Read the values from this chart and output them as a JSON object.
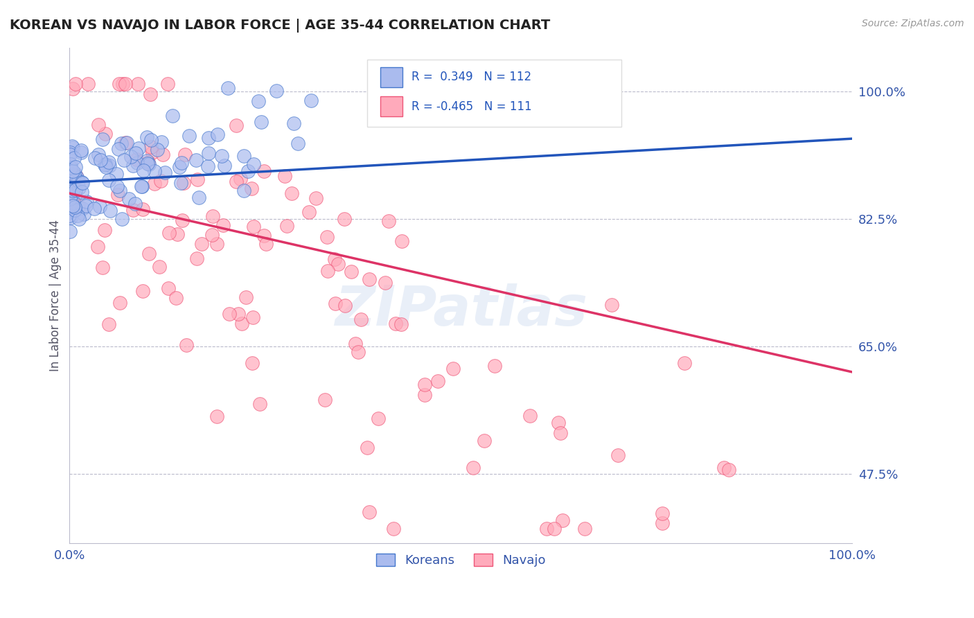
{
  "title": "KOREAN VS NAVAJO IN LABOR FORCE | AGE 35-44 CORRELATION CHART",
  "source": "Source: ZipAtlas.com",
  "ylabel": "In Labor Force | Age 35-44",
  "xlim": [
    0.0,
    1.0
  ],
  "ylim": [
    0.38,
    1.06
  ],
  "yticks": [
    0.475,
    0.65,
    0.825,
    1.0
  ],
  "ytick_labels": [
    "47.5%",
    "65.0%",
    "82.5%",
    "100.0%"
  ],
  "xticks": [
    0.0,
    1.0
  ],
  "xtick_labels": [
    "0.0%",
    "100.0%"
  ],
  "blue_R": 0.349,
  "blue_N": 112,
  "pink_R": -0.465,
  "pink_N": 111,
  "blue_fill": "#AABBEE",
  "pink_fill": "#FFAABB",
  "blue_edge": "#4477CC",
  "pink_edge": "#EE5577",
  "blue_line": "#2255BB",
  "pink_line": "#DD3366",
  "watermark": "ZIPatlas",
  "legend_label_blue": "Koreans",
  "legend_label_pink": "Navajo",
  "background_color": "#FFFFFF",
  "grid_color": "#BBBBCC",
  "title_color": "#222222",
  "tick_label_color": "#3355AA",
  "source_color": "#999999",
  "blue_line_start_y": 0.875,
  "blue_line_end_y": 0.935,
  "pink_line_start_y": 0.86,
  "pink_line_end_y": 0.615
}
